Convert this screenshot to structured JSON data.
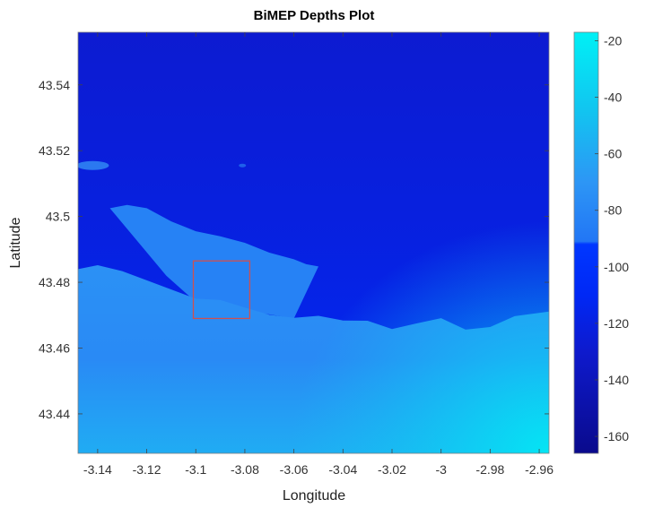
{
  "chart_data": {
    "type": "heatmap",
    "title": "BiMEP Depths Plot",
    "xlabel": "Longitude",
    "ylabel": "Latitude",
    "xlim": [
      -3.148,
      -2.956
    ],
    "ylim": [
      43.428,
      43.556
    ],
    "x_ticks": [
      -3.14,
      -3.12,
      -3.1,
      -3.08,
      -3.06,
      -3.04,
      -3.02,
      -3,
      -2.98,
      -2.96
    ],
    "x_tick_labels": [
      "-3.14",
      "-3.12",
      "-3.1",
      "-3.08",
      "-3.06",
      "-3.04",
      "-3.02",
      "-3",
      "-2.98",
      "-2.96"
    ],
    "y_ticks": [
      43.44,
      43.46,
      43.48,
      43.5,
      43.52,
      43.54
    ],
    "y_tick_labels": [
      "43.44",
      "43.46",
      "43.48",
      "43.5",
      "43.52",
      "43.54"
    ],
    "colorbar": {
      "colormap": "custom: navy → blue below -92 m, azure → cyan above",
      "clim": [
        -166,
        -17
      ],
      "ticks": [
        -160,
        -140,
        -120,
        -100,
        -80,
        -60,
        -40,
        -20
      ],
      "tick_labels": [
        "-160",
        "-140",
        "-120",
        "-100",
        "-80",
        "-60",
        "-40",
        "-20"
      ]
    },
    "shallow_region_boundary": [
      [
        -3.148,
        43.484
      ],
      [
        -3.14,
        43.4852
      ],
      [
        -3.13,
        43.4834
      ],
      [
        -3.12,
        43.4806
      ],
      [
        -3.11,
        43.4778
      ],
      [
        -3.1,
        43.475
      ],
      [
        -3.09,
        43.4746
      ],
      [
        -3.08,
        43.4723
      ],
      [
        -3.07,
        43.4701
      ],
      [
        -3.06,
        43.4692
      ],
      [
        -3.05,
        43.4698
      ],
      [
        -3.04,
        43.4684
      ],
      [
        -3.03,
        43.4683
      ],
      [
        -3.02,
        43.4658
      ],
      [
        -3.01,
        43.4675
      ],
      [
        -3.0,
        43.4691
      ],
      [
        -2.99,
        43.4656
      ],
      [
        -2.98,
        43.4664
      ],
      [
        -2.97,
        43.4697
      ],
      [
        -2.956,
        43.4711
      ]
    ],
    "spit_boundary": [
      [
        -3.135,
        43.5025
      ],
      [
        -3.128,
        43.5035
      ],
      [
        -3.12,
        43.5025
      ],
      [
        -3.11,
        43.4985
      ],
      [
        -3.1,
        43.4955
      ],
      [
        -3.09,
        43.494
      ],
      [
        -3.08,
        43.492
      ],
      [
        -3.07,
        43.489
      ],
      [
        -3.06,
        43.487
      ],
      [
        -3.055,
        43.4855
      ],
      [
        -3.05,
        43.4848
      ]
    ],
    "levels_m": {
      "deep_top": -128,
      "deep_mid": -120,
      "deep_coast": -108,
      "spit": -83,
      "shelf": -78,
      "shelf_offshore": -73,
      "coast": -58
    },
    "highlight_box": {
      "x": [
        -3.101,
        -3.078
      ],
      "y": [
        43.469,
        43.4865
      ],
      "color": "#d0504f"
    }
  }
}
